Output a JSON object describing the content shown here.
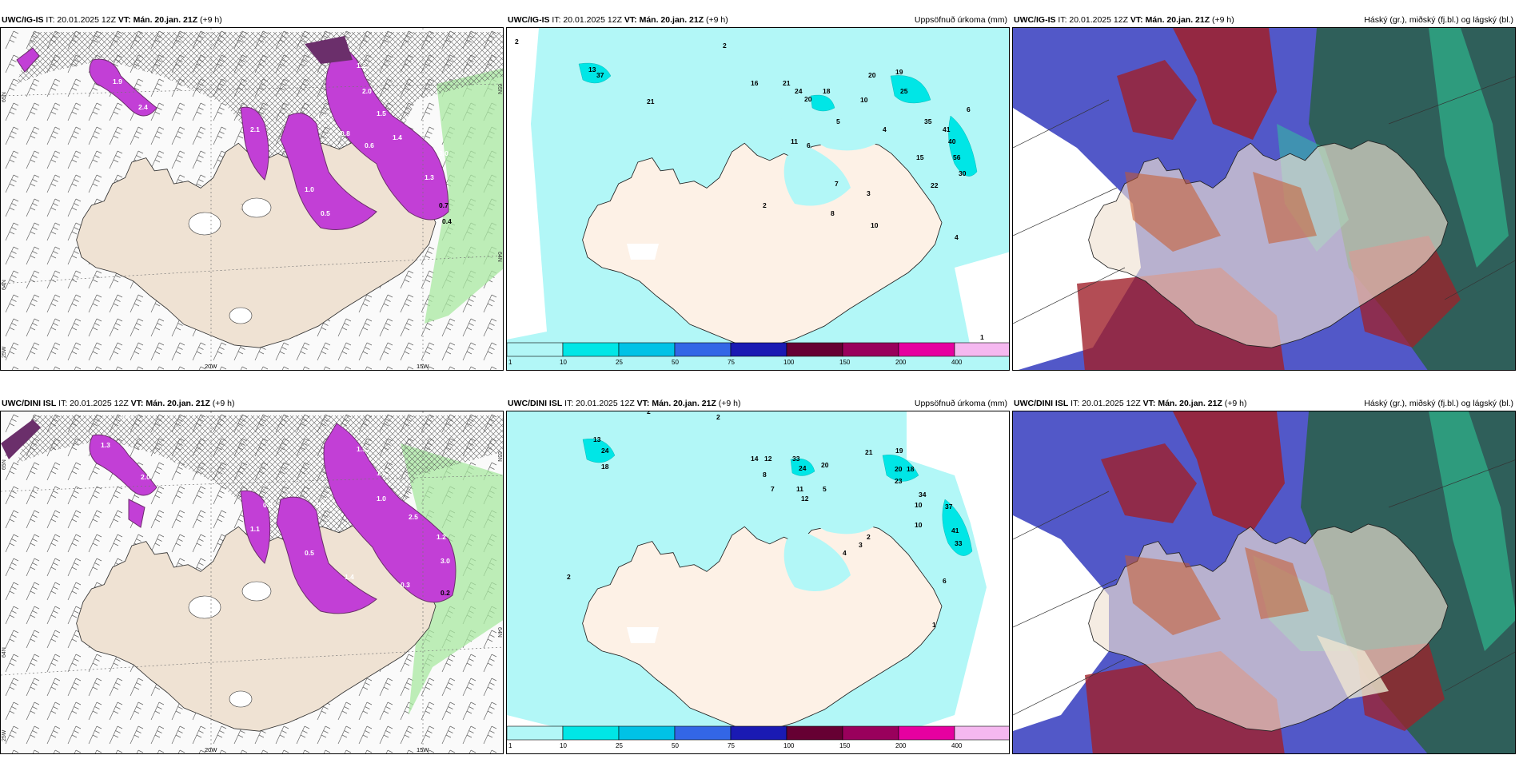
{
  "colors": {
    "land": "#efe2d3",
    "sea_bg": "#f3f3f3",
    "precip_light": "#b2f7f7",
    "precip_mid": "#00e6e6",
    "purple": "#c23fd6",
    "purple_dark": "#6b2f6b",
    "green_front": "#a8e8a0",
    "cloud_high": "#5258c8",
    "cloud_mid": "#a0202a",
    "cloud_low": "#2f5f5a"
  },
  "rows": [
    {
      "model": "UWC/IG-IS",
      "panels": [
        {
          "it": "IT: 20.01.2025 12Z",
          "vt_label": "VT:",
          "vt": "Mán. 20.jan. 21Z",
          "lead": "(+9 h)",
          "right_title": "",
          "lat_labels": [
            "65N",
            "64N",
            "25W"
          ],
          "lon_labels": [
            "20W",
            "15W"
          ],
          "right_lat_labels": [
            "65N",
            "64N"
          ],
          "values": [
            "1.2",
            "2.0",
            "1.5",
            "0.8",
            "0.6",
            "1.9",
            "2.4",
            "1.4",
            "1.0",
            "0.5",
            "3.0",
            "1.3",
            "0.7",
            "1.6",
            "2.1",
            "0.4"
          ]
        },
        {
          "it": "IT: 20.01.2025 12Z",
          "vt_label": "VT:",
          "vt": "Mán. 20.jan. 21Z",
          "lead": "(+9 h)",
          "right_title": "Uppsöfnuð úrkoma (mm)",
          "values": [
            "2",
            "2",
            "37",
            "21",
            "16",
            "21",
            "24",
            "20",
            "18",
            "20",
            "19",
            "10",
            "25",
            "35",
            "40",
            "56",
            "15",
            "8",
            "7",
            "6",
            "10",
            "5",
            "4",
            "3",
            "2",
            "1",
            "11",
            "41",
            "30",
            "13",
            "22",
            "6",
            "4"
          ],
          "colorbar": {
            "ticks": [
              "1",
              "10",
              "25",
              "50",
              "75",
              "100",
              "150",
              "200",
              "400"
            ],
            "colors": [
              "#b2f7f7",
              "#00e6e6",
              "#00c2e6",
              "#3366e6",
              "#1a1ab3",
              "#660033",
              "#99005c",
              "#e600a0",
              "#f5b8f0"
            ]
          }
        },
        {
          "it": "IT: 20.01.2025 12Z",
          "vt_label": "VT:",
          "vt": "Mán. 20.jan. 21Z",
          "lead": "(+9 h)",
          "right_title": "Háský (gr.), miðský (fj.bl.) og lágský (bl.)"
        }
      ]
    },
    {
      "model": "UWC/DINI ISL",
      "panels": [
        {
          "it": "IT: 20.01.2025 12Z",
          "vt_label": "VT:",
          "vt": "Mán. 20.jan. 21Z",
          "lead": "(+9 h)",
          "right_title": "",
          "lat_labels": [
            "65N",
            "64N",
            "25W"
          ],
          "lon_labels": [
            "20W",
            "15W"
          ],
          "right_lat_labels": [
            "65N",
            "64N"
          ],
          "values": [
            "0.4",
            "1.3",
            "2.0",
            "1.5",
            "1.6",
            "1.0",
            "0.8",
            "2.5",
            "1.4",
            "0.5",
            "0.3",
            "1.2",
            "3.0",
            "0.7",
            "0.2",
            "1.1"
          ]
        },
        {
          "it": "IT: 20.01.2025 12Z",
          "vt_label": "VT:",
          "vt": "Mán. 20.jan. 21Z",
          "lead": "(+9 h)",
          "right_title": "Uppsöfnuð úrkoma (mm)",
          "values": [
            "2",
            "2",
            "13",
            "24",
            "18",
            "14",
            "12",
            "33",
            "24",
            "20",
            "21",
            "19",
            "20",
            "18",
            "23",
            "34",
            "37",
            "41",
            "33",
            "10",
            "8",
            "7",
            "11",
            "12",
            "5",
            "4",
            "3",
            "2",
            "1",
            "6",
            "2",
            "10"
          ],
          "colorbar": {
            "ticks": [
              "1",
              "10",
              "25",
              "50",
              "75",
              "100",
              "150",
              "200",
              "400"
            ],
            "colors": [
              "#b2f7f7",
              "#00e6e6",
              "#00c2e6",
              "#3366e6",
              "#1a1ab3",
              "#660033",
              "#99005c",
              "#e600a0",
              "#f5b8f0"
            ]
          }
        },
        {
          "it": "IT: 20.01.2025 12Z",
          "vt_label": "VT:",
          "vt": "Mán. 20.jan. 21Z",
          "lead": "(+9 h)",
          "right_title": "Háský (gr.), miðský (fj.bl.) og lágský (bl.)"
        }
      ]
    }
  ]
}
